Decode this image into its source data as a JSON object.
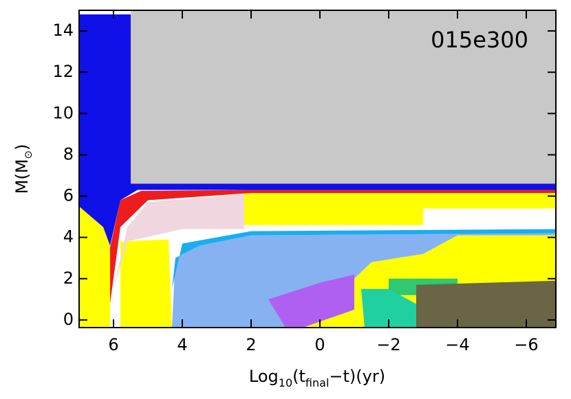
{
  "chart_data": {
    "type": "area",
    "annotation": "015e300",
    "x_label_parts": [
      "Log",
      "10",
      "(t",
      "final",
      "−t)(yr)"
    ],
    "y_label_parts": [
      "M(M",
      "⊙",
      ")"
    ],
    "xlim": [
      7,
      -6.86
    ],
    "ylim": [
      -0.37,
      15
    ],
    "xticks": [
      6,
      4,
      2,
      0,
      {
        "value": -2,
        "label": "−2"
      },
      {
        "value": -4,
        "label": "−4"
      },
      {
        "value": -6,
        "label": "−6"
      }
    ],
    "yticks": [
      0,
      2,
      4,
      6,
      8,
      10,
      12,
      14
    ],
    "regions": [
      {
        "color": "#ffff00",
        "x": [
          7,
          6.3,
          6.1,
          6.1,
          7
        ],
        "y": [
          5.5,
          4.5,
          3.6,
          -0.37,
          -0.37
        ]
      },
      {
        "color": "#ffff00",
        "x": [
          5.8,
          5.8,
          4.4,
          4.3
        ],
        "y": [
          -0.37,
          3.8,
          3.9,
          -0.37
        ]
      },
      {
        "color": "#ffff00",
        "x": [
          2.2,
          -6.86,
          -6.86,
          -3,
          -3,
          2.2
        ],
        "y": [
          6.2,
          6.2,
          5.4,
          5.4,
          4.6,
          4.6
        ]
      },
      {
        "color": "#ffff00",
        "x": [
          0.5,
          0.6,
          -1,
          -1.5,
          -3,
          -4,
          -6.86,
          -6.86
        ],
        "y": [
          -0.37,
          0.8,
          2,
          2.8,
          3.2,
          4.1,
          4.1,
          -0.37
        ]
      },
      {
        "color": "#86b2f2",
        "x": [
          4.3,
          4.2,
          3.5,
          2,
          -6.86,
          -6.86,
          -4,
          -3,
          -1.5,
          -1,
          0.6,
          0.5
        ],
        "y": [
          -0.37,
          3,
          3.6,
          4.1,
          4.2,
          4.1,
          4.1,
          3.2,
          2.8,
          2,
          0.8,
          -0.37
        ]
      },
      {
        "color": "#19aef0",
        "x": [
          4.3,
          4,
          2,
          -6.86,
          -6.86,
          2,
          3.5,
          4.2
        ],
        "y": [
          1.5,
          3.7,
          4.3,
          4.4,
          4.2,
          4.1,
          3.6,
          3
        ]
      },
      {
        "color": "#f0d6de",
        "x": [
          6,
          5.6,
          5,
          2.2,
          2.2,
          4,
          5.6
        ],
        "y": [
          1.5,
          4.5,
          5.7,
          6.1,
          4.4,
          4.4,
          3.8
        ]
      },
      {
        "color": "#ee1c1c",
        "x": [
          6.1,
          5.8,
          5.2,
          2,
          -6.86,
          -6.86,
          2,
          5,
          5.8,
          6.1
        ],
        "y": [
          3.5,
          5.8,
          6.25,
          6.3,
          6.3,
          6.15,
          6.15,
          5.8,
          4.5,
          0.8
        ]
      },
      {
        "color": "#1010e8",
        "x": [
          7,
          7,
          5.5,
          5.5,
          -6.86,
          -6.86,
          5.3,
          5.8,
          6.1,
          6.3
        ],
        "y": [
          5.5,
          14.8,
          14.8,
          6.6,
          6.6,
          6.3,
          6.3,
          5.8,
          3.6,
          4.5
        ]
      },
      {
        "color": "#c8c8c8",
        "x": [
          5.5,
          -6.86,
          -6.86,
          5.5
        ],
        "y": [
          15,
          15,
          6.6,
          6.6
        ]
      },
      {
        "color": "#b060f0",
        "x": [
          1.5,
          0,
          -1,
          -1,
          0.5,
          1
        ],
        "y": [
          1,
          1.8,
          2.2,
          0.5,
          -0.37,
          -0.37
        ]
      },
      {
        "color": "#30c870",
        "x": [
          -2,
          -4,
          -4,
          -2
        ],
        "y": [
          2,
          2,
          1.2,
          1.2
        ]
      },
      {
        "color": "#20d0a0",
        "x": [
          -1.2,
          -2,
          -3,
          -3,
          -1.3
        ],
        "y": [
          1.5,
          1.5,
          0.6,
          -0.37,
          -0.37
        ]
      },
      {
        "color": "#6a6545",
        "x": [
          -2.8,
          -6.86,
          -6.86,
          -2.8
        ],
        "y": [
          1.7,
          1.9,
          -0.37,
          -0.37
        ]
      }
    ]
  }
}
